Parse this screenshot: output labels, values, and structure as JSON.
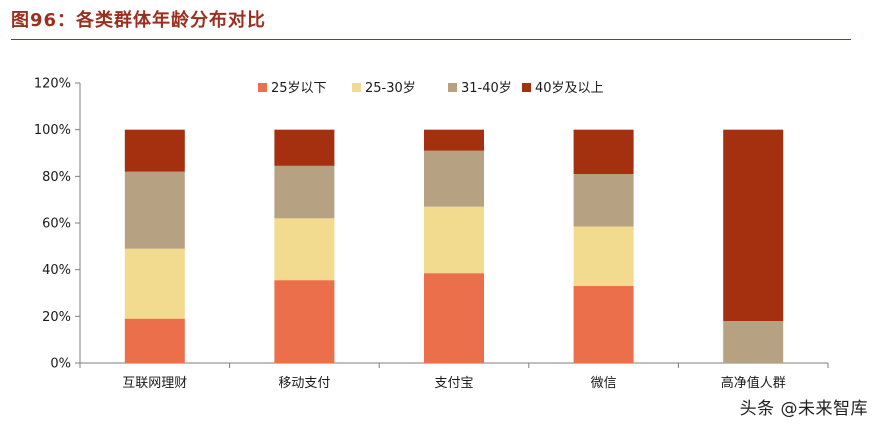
{
  "figure": {
    "title": "图96：各类群体年龄分布对比",
    "watermark": "头条 @未来智库"
  },
  "chart_data": {
    "type": "bar",
    "stacked": true,
    "categories": [
      "互联网理财",
      "移动支付",
      "支付宝",
      "微信",
      "高净值人群"
    ],
    "series": [
      {
        "name": "25岁以下",
        "color": "#ec6f4b",
        "values": [
          19,
          35.5,
          38.5,
          33,
          0
        ]
      },
      {
        "name": "25-30岁",
        "color": "#f2da8e",
        "values": [
          30,
          26.5,
          28.5,
          25.5,
          0
        ]
      },
      {
        "name": "31-40岁",
        "color": "#b6a283",
        "values": [
          33,
          22.5,
          24,
          22.5,
          18
        ]
      },
      {
        "name": "40岁及以上",
        "color": "#a5300f",
        "values": [
          18,
          15.5,
          9,
          19,
          82
        ]
      }
    ],
    "y_ticks": [
      "0%",
      "20%",
      "40%",
      "60%",
      "80%",
      "100%",
      "120%"
    ],
    "ylim": [
      0,
      120
    ],
    "legend_position": "top",
    "grid": false
  }
}
